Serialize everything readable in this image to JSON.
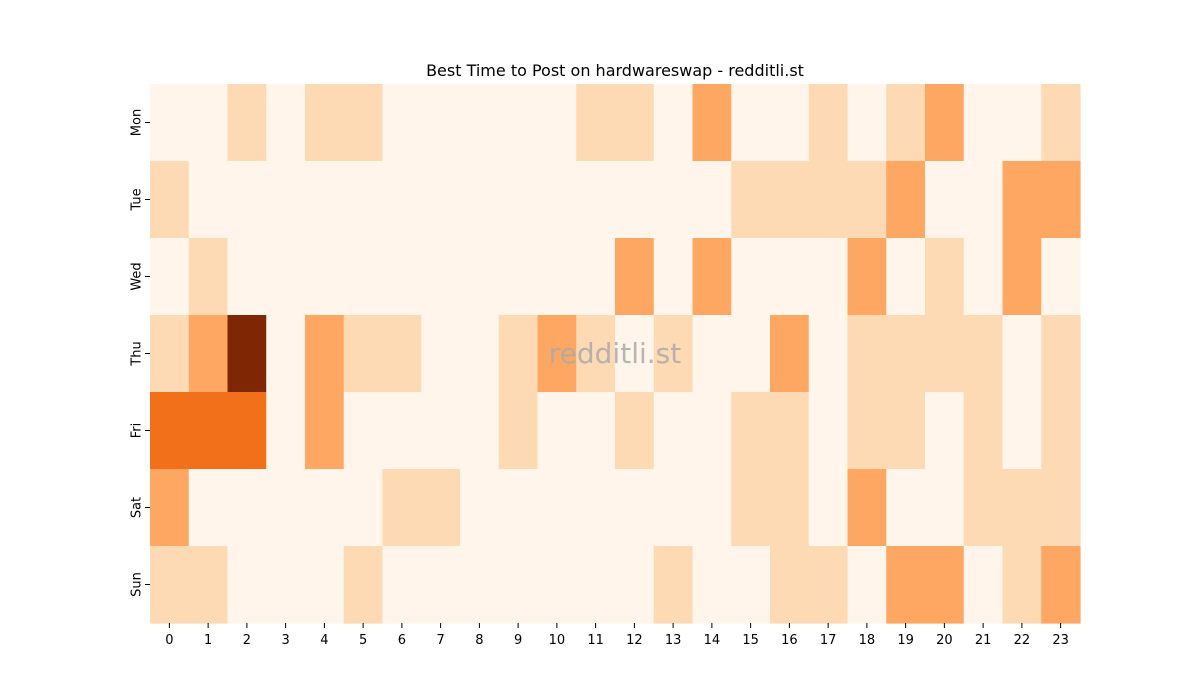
{
  "chart_data": {
    "type": "heatmap",
    "title": "Best Time to Post on hardwareswap - redditli.st",
    "xlabel": "",
    "ylabel": "",
    "x_categories": [
      "0",
      "1",
      "2",
      "3",
      "4",
      "5",
      "6",
      "7",
      "8",
      "9",
      "10",
      "11",
      "12",
      "13",
      "14",
      "15",
      "16",
      "17",
      "18",
      "19",
      "20",
      "21",
      "22",
      "23"
    ],
    "y_categories": [
      "Mon",
      "Tue",
      "Wed",
      "Thu",
      "Fri",
      "Sat",
      "Sun"
    ],
    "values": [
      [
        0,
        0,
        1,
        0,
        1,
        1,
        0,
        0,
        0,
        0,
        0,
        1,
        1,
        0,
        2,
        0,
        0,
        1,
        0,
        1,
        2,
        0,
        0,
        1
      ],
      [
        1,
        0,
        0,
        0,
        0,
        0,
        0,
        0,
        0,
        0,
        0,
        0,
        0,
        0,
        0,
        1,
        1,
        1,
        1,
        2,
        0,
        0,
        2,
        2
      ],
      [
        0,
        1,
        0,
        0,
        0,
        0,
        0,
        0,
        0,
        0,
        0,
        0,
        2,
        0,
        2,
        0,
        0,
        0,
        2,
        0,
        1,
        0,
        2,
        0
      ],
      [
        1,
        2,
        5,
        0,
        2,
        1,
        1,
        0,
        0,
        1,
        2,
        1,
        0,
        1,
        0,
        0,
        2,
        0,
        1,
        1,
        1,
        1,
        0,
        1
      ],
      [
        3,
        3,
        3,
        0,
        2,
        0,
        0,
        0,
        0,
        1,
        0,
        0,
        1,
        0,
        0,
        1,
        1,
        0,
        1,
        1,
        0,
        1,
        0,
        1
      ],
      [
        2,
        0,
        0,
        0,
        0,
        0,
        1,
        1,
        0,
        0,
        0,
        0,
        0,
        0,
        0,
        1,
        1,
        0,
        2,
        0,
        0,
        1,
        1,
        1
      ],
      [
        1,
        1,
        0,
        0,
        0,
        1,
        0,
        0,
        0,
        0,
        0,
        0,
        0,
        1,
        0,
        0,
        1,
        1,
        0,
        2,
        2,
        0,
        1,
        2
      ]
    ],
    "colormap": "Oranges",
    "color_scale": [
      "#fff5eb",
      "#fdd9b4",
      "#fda762",
      "#f3701b",
      "#c54102",
      "#7f2704"
    ],
    "colorbar": false,
    "grid": false,
    "watermark": "redditli.st"
  }
}
